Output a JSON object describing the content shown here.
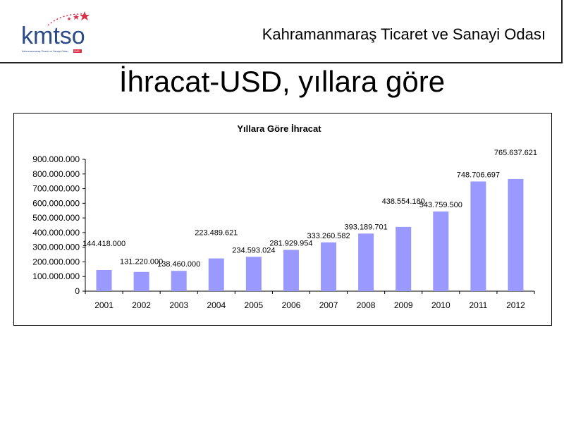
{
  "header": {
    "org_name": "Kahramanmaraş Ticaret ve Sanayi Odası",
    "logo_text": "kmtso",
    "logo_subtitle": "Kahramanmaraş Ticaret ve Sanayi Odası",
    "logo_badge": "1930"
  },
  "slide": {
    "title": "İhracat-USD, yıllara göre"
  },
  "chart_data": {
    "type": "bar",
    "title": "Yıllara Göre İhracat",
    "xlabel": "",
    "ylabel": "",
    "ylim": [
      0,
      900000000
    ],
    "yticks": [
      0,
      100000000,
      200000000,
      300000000,
      400000000,
      500000000,
      600000000,
      700000000,
      800000000,
      900000000
    ],
    "ytick_labels": [
      "0",
      "100.000.000",
      "200.000.000",
      "300.000.000",
      "400.000.000",
      "500.000.000",
      "600.000.000",
      "700.000.000",
      "800.000.000",
      "900.000.000"
    ],
    "categories": [
      "2001",
      "2002",
      "2003",
      "2004",
      "2005",
      "2006",
      "2007",
      "2008",
      "2009",
      "2010",
      "2011",
      "2012"
    ],
    "values": [
      144418000,
      131220000,
      138460000,
      223489621,
      234593024,
      281929954,
      333260582,
      393189701,
      438554180,
      543759500,
      748706697,
      765637621
    ],
    "value_labels": [
      "144.418.000",
      "131.220.000",
      "138.460.000",
      "223.489.621",
      "234.593.024",
      "281.929.954",
      "333.260.582",
      "393.189.701",
      "438.554.180",
      "543.759.500",
      "748.706.697",
      "765.637.621"
    ],
    "bar_color": "#9999ff",
    "grid": false,
    "legend": "none"
  }
}
